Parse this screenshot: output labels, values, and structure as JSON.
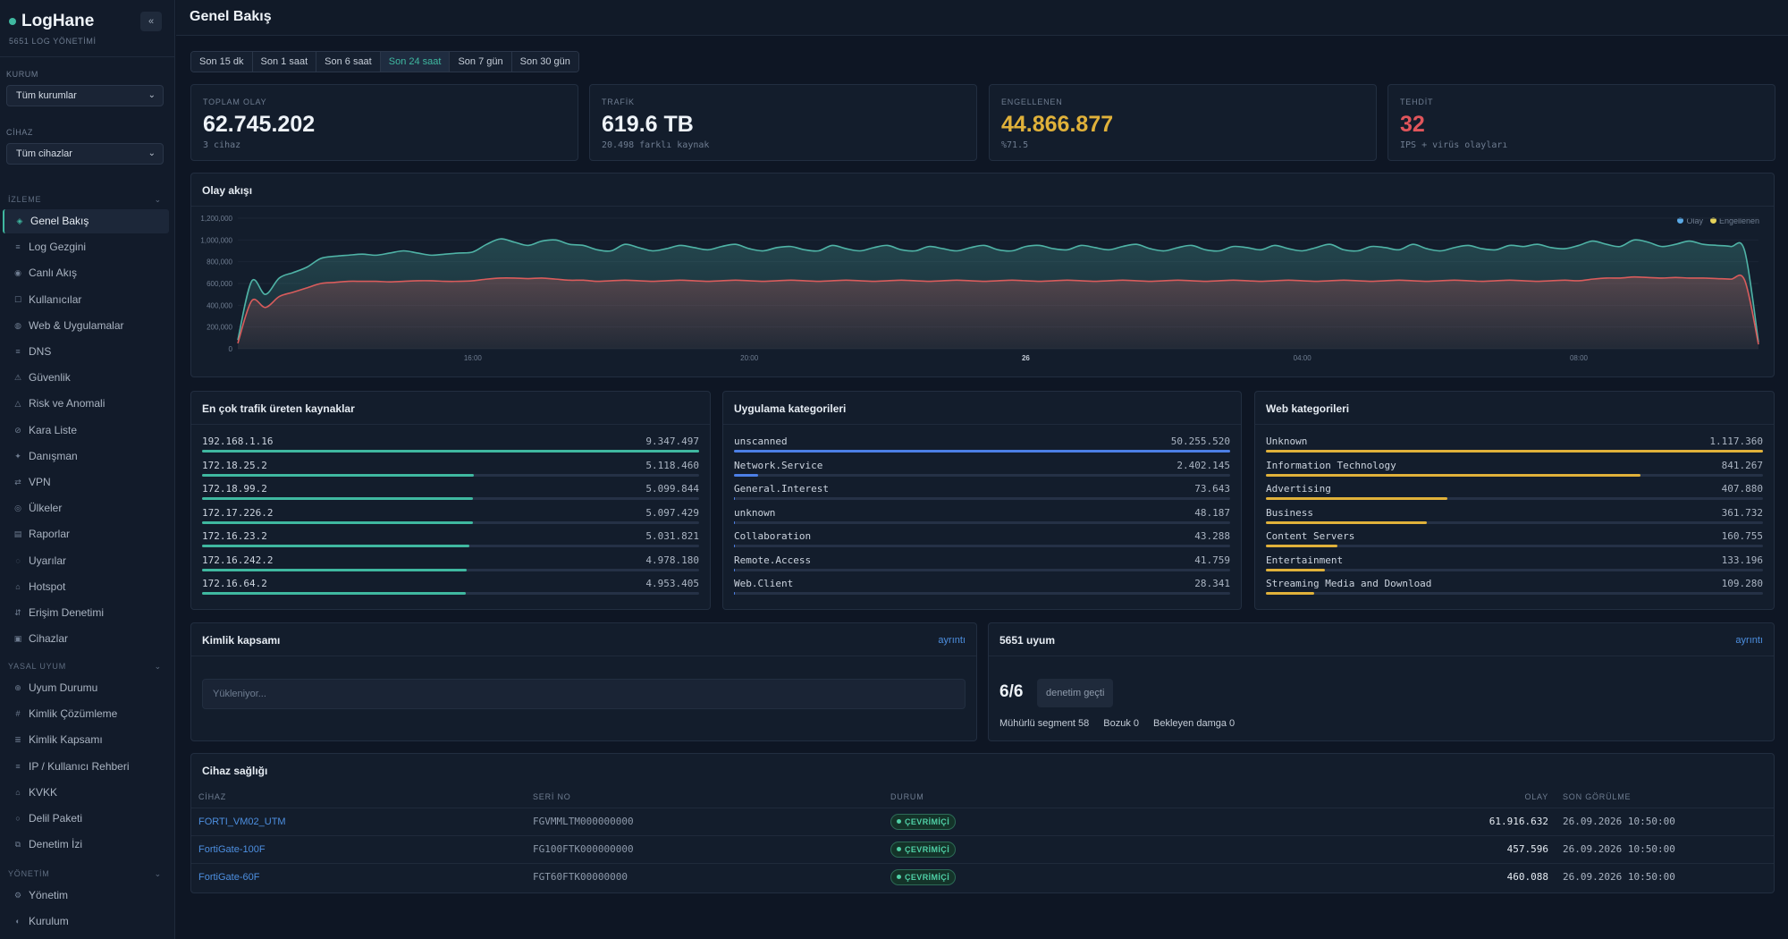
{
  "app": {
    "name": "LogHane",
    "subtitle": "5651 LOG YÖNETİMİ",
    "collapse_label": "«"
  },
  "filters": {
    "org_label": "KURUM",
    "org_value": "Tüm kurumlar",
    "device_label": "CİHAZ",
    "device_value": "Tüm cihazlar"
  },
  "sidebar": {
    "sections": [
      {
        "title": "İZLEME",
        "items": [
          {
            "label": "Genel Bakış",
            "icon": "dashboard-icon",
            "glyph": "◈",
            "active": true
          },
          {
            "label": "Log Gezgini",
            "icon": "log-icon",
            "glyph": "≡"
          },
          {
            "label": "Canlı Akış",
            "icon": "live-icon",
            "glyph": "◉"
          },
          {
            "label": "Kullanıcılar",
            "icon": "users-icon",
            "glyph": "☐"
          },
          {
            "label": "Web & Uygulamalar",
            "icon": "web-icon",
            "glyph": "◍"
          },
          {
            "label": "DNS",
            "icon": "dns-icon",
            "glyph": "≡"
          },
          {
            "label": "Güvenlik",
            "icon": "shield-icon",
            "glyph": "⚠"
          },
          {
            "label": "Risk ve Anomali",
            "icon": "risk-icon",
            "glyph": "△"
          },
          {
            "label": "Kara Liste",
            "icon": "blacklist-icon",
            "glyph": "⊘"
          },
          {
            "label": "Danışman",
            "icon": "advisor-icon",
            "glyph": "✦"
          },
          {
            "label": "VPN",
            "icon": "vpn-icon",
            "glyph": "⇄"
          },
          {
            "label": "Ülkeler",
            "icon": "globe-icon",
            "glyph": "◎"
          },
          {
            "label": "Raporlar",
            "icon": "report-icon",
            "glyph": "▤"
          },
          {
            "label": "Uyarılar",
            "icon": "alert-icon",
            "glyph": "◌"
          },
          {
            "label": "Hotspot",
            "icon": "hotspot-icon",
            "glyph": "⌂"
          },
          {
            "label": "Erişim Denetimi",
            "icon": "access-icon",
            "glyph": "⇵"
          },
          {
            "label": "Cihazlar",
            "icon": "device-icon",
            "glyph": "▣"
          }
        ]
      },
      {
        "title": "YASAL UYUM",
        "items": [
          {
            "label": "Uyum Durumu",
            "icon": "compliance-icon",
            "glyph": "⊕"
          },
          {
            "label": "Kimlik Çözümleme",
            "icon": "identity-icon",
            "glyph": "#"
          },
          {
            "label": "Kimlik Kapsamı",
            "icon": "coverage-icon",
            "glyph": "≣"
          },
          {
            "label": "IP / Kullanıcı Rehberi",
            "icon": "directory-icon",
            "glyph": "≡"
          },
          {
            "label": "KVKK",
            "icon": "kvkk-icon",
            "glyph": "⌂"
          },
          {
            "label": "Delil Paketi",
            "icon": "evidence-icon",
            "glyph": "○"
          },
          {
            "label": "Denetim İzi",
            "icon": "audit-icon",
            "glyph": "⧉"
          }
        ]
      },
      {
        "title": "YÖNETİM",
        "items": [
          {
            "label": "Yönetim",
            "icon": "gear-icon",
            "glyph": "⚙"
          },
          {
            "label": "Kurulum",
            "icon": "setup-icon",
            "glyph": "◐"
          }
        ]
      }
    ],
    "section_toggle": "⌄"
  },
  "header": {
    "title": "Genel Bakış"
  },
  "time_ranges": [
    {
      "label": "Son 15 dk"
    },
    {
      "label": "Son 1 saat"
    },
    {
      "label": "Son 6 saat"
    },
    {
      "label": "Son 24 saat",
      "active": true
    },
    {
      "label": "Son 7 gün"
    },
    {
      "label": "Son 30 gün"
    }
  ],
  "kpis": [
    {
      "label": "TOPLAM OLAY",
      "value": "62.745.202",
      "sub": "3 cihaz",
      "color": "#eef3f8"
    },
    {
      "label": "TRAFİK",
      "value": "619.6 TB",
      "sub": "20.498 farklı kaynak",
      "color": "#eef3f8"
    },
    {
      "label": "ENGELLENEN",
      "value": "44.866.877",
      "sub": "%71.5",
      "color": "#e0b13a"
    },
    {
      "label": "TEHDİT",
      "value": "32",
      "sub": "IPS + virüs olayları",
      "color": "#e0555b"
    }
  ],
  "event_flow": {
    "title": "Olay akışı",
    "legend": [
      {
        "name": "Olay",
        "color": "#5aa9e6"
      },
      {
        "name": "Engellenen",
        "color": "#e6d35a"
      }
    ]
  },
  "chart_data": {
    "type": "area",
    "title": "Olay akışı",
    "ylim": [
      0,
      1200000
    ],
    "yticks": [
      0,
      200000,
      400000,
      600000,
      800000,
      1000000,
      1200000
    ],
    "ytick_labels": [
      "0",
      "200,000",
      "400,000",
      "600,000",
      "800,000",
      "1,000,000",
      "1,200,000"
    ],
    "xtick_labels": [
      {
        "label": "16:00",
        "index": 17,
        "bold": false
      },
      {
        "label": "20:00",
        "index": 37,
        "bold": false
      },
      {
        "label": "26",
        "index": 57,
        "bold": true
      },
      {
        "label": "04:00",
        "index": 77,
        "bold": false
      },
      {
        "label": "08:00",
        "index": 97,
        "bold": false
      }
    ],
    "series": [
      {
        "name": "Olay",
        "color": "#4fb3a6",
        "values": [
          80000,
          620000,
          500000,
          650000,
          700000,
          750000,
          830000,
          850000,
          860000,
          870000,
          860000,
          880000,
          900000,
          880000,
          860000,
          870000,
          880000,
          890000,
          960000,
          1010000,
          980000,
          950000,
          990000,
          1000000,
          960000,
          950000,
          910000,
          900000,
          960000,
          930000,
          900000,
          920000,
          950000,
          930000,
          910000,
          940000,
          960000,
          920000,
          900000,
          930000,
          940000,
          910000,
          900000,
          950000,
          920000,
          900000,
          930000,
          950000,
          910000,
          900000,
          940000,
          920000,
          900000,
          930000,
          950000,
          910000,
          900000,
          940000,
          950000,
          920000,
          910000,
          950000,
          930000,
          910000,
          940000,
          960000,
          920000,
          900000,
          930000,
          950000,
          910000,
          900000,
          940000,
          930000,
          910000,
          950000,
          920000,
          900000,
          930000,
          960000,
          910000,
          900000,
          940000,
          930000,
          910000,
          960000,
          920000,
          900000,
          930000,
          950000,
          920000,
          910000,
          950000,
          940000,
          960000,
          930000,
          920000,
          950000,
          990000,
          960000,
          940000,
          1000000,
          980000,
          940000,
          960000,
          990000,
          960000,
          950000,
          940000,
          900000,
          60000
        ]
      },
      {
        "name": "Engellenen",
        "color": "#d95c5c",
        "values": [
          50000,
          440000,
          380000,
          480000,
          520000,
          560000,
          600000,
          610000,
          620000,
          620000,
          620000,
          615000,
          620000,
          625000,
          625000,
          620000,
          620000,
          625000,
          640000,
          650000,
          650000,
          645000,
          650000,
          640000,
          630000,
          630000,
          620000,
          625000,
          630000,
          625000,
          620000,
          625000,
          630000,
          625000,
          620000,
          625000,
          630000,
          625000,
          620000,
          625000,
          630000,
          625000,
          620000,
          625000,
          630000,
          625000,
          620000,
          625000,
          630000,
          625000,
          620000,
          625000,
          630000,
          625000,
          620000,
          625000,
          630000,
          625000,
          620000,
          625000,
          630000,
          625000,
          620000,
          625000,
          630000,
          625000,
          620000,
          625000,
          630000,
          625000,
          620000,
          625000,
          630000,
          625000,
          620000,
          625000,
          630000,
          625000,
          620000,
          625000,
          630000,
          625000,
          620000,
          625000,
          630000,
          625000,
          620000,
          625000,
          630000,
          625000,
          620000,
          625000,
          630000,
          625000,
          620000,
          625000,
          630000,
          625000,
          640000,
          650000,
          650000,
          660000,
          655000,
          650000,
          655000,
          650000,
          650000,
          645000,
          640000,
          630000,
          40000
        ]
      }
    ]
  },
  "top_sources": {
    "title": "En çok trafik üreten kaynaklar",
    "color": "#3fb8a0",
    "rows": [
      {
        "label": "192.168.1.16",
        "value": "9.347.497",
        "n": 9347497
      },
      {
        "label": "172.18.25.2",
        "value": "5.118.460",
        "n": 5118460
      },
      {
        "label": "172.18.99.2",
        "value": "5.099.844",
        "n": 5099844
      },
      {
        "label": "172.17.226.2",
        "value": "5.097.429",
        "n": 5097429
      },
      {
        "label": "172.16.23.2",
        "value": "5.031.821",
        "n": 5031821
      },
      {
        "label": "172.16.242.2",
        "value": "4.978.180",
        "n": 4978180
      },
      {
        "label": "172.16.64.2",
        "value": "4.953.405",
        "n": 4953405
      }
    ]
  },
  "app_categories": {
    "title": "Uygulama kategorileri",
    "color": "#4c7fe6",
    "rows": [
      {
        "label": "unscanned",
        "value": "50.255.520",
        "n": 50255520
      },
      {
        "label": "Network.Service",
        "value": "2.402.145",
        "n": 2402145
      },
      {
        "label": "General.Interest",
        "value": "73.643",
        "n": 73643
      },
      {
        "label": "unknown",
        "value": "48.187",
        "n": 48187
      },
      {
        "label": "Collaboration",
        "value": "43.288",
        "n": 43288
      },
      {
        "label": "Remote.Access",
        "value": "41.759",
        "n": 41759
      },
      {
        "label": "Web.Client",
        "value": "28.341",
        "n": 28341
      }
    ]
  },
  "web_categories": {
    "title": "Web kategorileri",
    "color": "#e0b13a",
    "rows": [
      {
        "label": "Unknown",
        "value": "1.117.360",
        "n": 1117360
      },
      {
        "label": "Information Technology",
        "value": "841.267",
        "n": 841267
      },
      {
        "label": "Advertising",
        "value": "407.880",
        "n": 407880
      },
      {
        "label": "Business",
        "value": "361.732",
        "n": 361732
      },
      {
        "label": "Content Servers",
        "value": "160.755",
        "n": 160755
      },
      {
        "label": "Entertainment",
        "value": "133.196",
        "n": 133196
      },
      {
        "label": "Streaming Media and Download",
        "value": "109.280",
        "n": 109280
      }
    ]
  },
  "identity": {
    "title": "Kimlik kapsamı",
    "link": "ayrıntı",
    "loading": "Yükleniyor..."
  },
  "compliance": {
    "title": "5651 uyum",
    "link": "ayrıntı",
    "score": "6/6",
    "badge": "denetim geçti",
    "stats": [
      "Mühürlü segment 58",
      "Bozuk 0",
      "Bekleyen damga 0"
    ]
  },
  "device_health": {
    "title": "Cihaz sağlığı",
    "columns": {
      "device": "CİHAZ",
      "serial": "SERİ NO",
      "status": "DURUM",
      "events": "OLAY",
      "last_seen": "SON GÖRÜLME"
    },
    "rows": [
      {
        "device": "FORTI_VM02_UTM",
        "serial": "FGVMMLTM000000000",
        "status": "ÇEVRİMİÇİ",
        "events": "61.916.632",
        "last_seen": "26.09.2026 10:50:00"
      },
      {
        "device": "FortiGate-100F",
        "serial": "FG100FTK000000000",
        "status": "ÇEVRİMİÇİ",
        "events": "457.596",
        "last_seen": "26.09.2026 10:50:00"
      },
      {
        "device": "FortiGate-60F",
        "serial": "FGT60FTK00000000",
        "status": "ÇEVRİMİÇİ",
        "events": "460.088",
        "last_seen": "26.09.2026 10:50:00"
      }
    ]
  }
}
